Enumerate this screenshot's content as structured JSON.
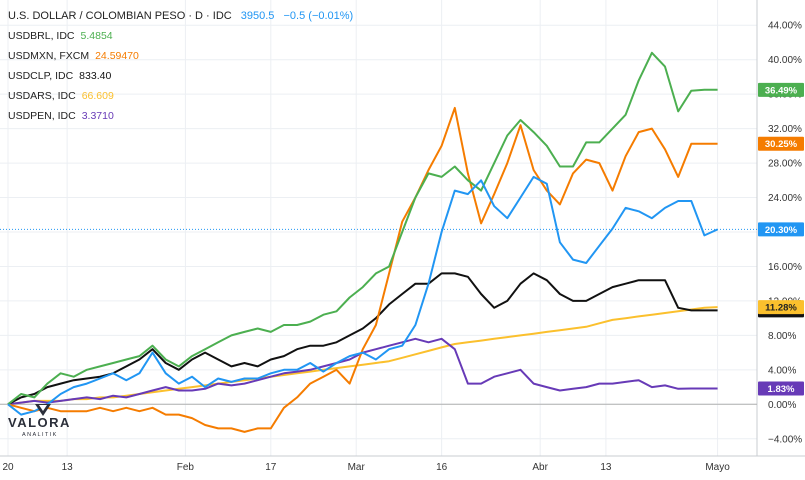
{
  "chart_data": {
    "type": "line",
    "title": "U.S. DOLLAR / COLOMBIAN PESO · D · IDC",
    "title_quote": {
      "last": "3950.5",
      "change": "−0.5",
      "change_pct": "(−0.01%)"
    },
    "ylim": [
      -6,
      46
    ],
    "y_ticks": [
      "−4.00%",
      "0.00%",
      "4.00%",
      "8.00%",
      "12.00%",
      "16.00%",
      "20.00%",
      "24.00%",
      "28.00%",
      "32.00%",
      "36.00%",
      "40.00%",
      "44.00%"
    ],
    "y_tick_values": [
      -4,
      0,
      4,
      8,
      12,
      16,
      20,
      24,
      28,
      32,
      36,
      40,
      44
    ],
    "x_ticks": [
      {
        "label": "20",
        "x": 0
      },
      {
        "label": "13",
        "x": 9
      },
      {
        "label": "Feb",
        "x": 27
      },
      {
        "label": "17",
        "x": 40
      },
      {
        "label": "Mar",
        "x": 53
      },
      {
        "label": "16",
        "x": 66
      },
      {
        "label": "Abr",
        "x": 81
      },
      {
        "label": "13",
        "x": 91
      },
      {
        "label": "Mayo",
        "x": 108
      }
    ],
    "xlim": [
      0,
      114
    ],
    "grid": true,
    "x": [
      0,
      2,
      4,
      6,
      8,
      10,
      12,
      14,
      16,
      18,
      20,
      22,
      24,
      26,
      28,
      30,
      32,
      34,
      36,
      38,
      40,
      42,
      44,
      46,
      48,
      50,
      52,
      54,
      56,
      58,
      60,
      62,
      64,
      66,
      68,
      70,
      72,
      74,
      76,
      78,
      80,
      82,
      84,
      86,
      88,
      90,
      92,
      94,
      96,
      98,
      100,
      102,
      104,
      106,
      108
    ],
    "series": [
      {
        "name": "U.S. DOLLAR / COLOMBIAN PESO",
        "color": "#2196f3",
        "last_label": "20.30%",
        "values": [
          0,
          -1.2,
          -0.8,
          0,
          1.2,
          2,
          2.4,
          3,
          3.6,
          2.8,
          3.6,
          6,
          3.6,
          2.4,
          3.2,
          2,
          3,
          2.6,
          3,
          3,
          3.6,
          4,
          4,
          4.8,
          3.8,
          4.8,
          5.6,
          6,
          5.2,
          6.4,
          6.8,
          9.2,
          14,
          20,
          24.8,
          24.4,
          26,
          23,
          21.6,
          24,
          26.4,
          25.6,
          18.8,
          16.8,
          16.4,
          18.4,
          20.4,
          22.8,
          22.4,
          21.6,
          22.8,
          23.6,
          23.6,
          19.6,
          20.3
        ]
      },
      {
        "name": "USDBRL, IDC",
        "short": "USDBRL",
        "quote": "5.4854",
        "color": "#4caf50",
        "last_label": "36.49%",
        "values": [
          0,
          1.2,
          0.8,
          2.4,
          3.6,
          3.2,
          4,
          4.4,
          4.8,
          5.2,
          5.6,
          6.8,
          5.2,
          4.4,
          5.6,
          6.4,
          7.2,
          8,
          8.4,
          8.8,
          8.4,
          9.2,
          9.2,
          9.6,
          10.4,
          10.8,
          12.4,
          13.6,
          15.2,
          16,
          20,
          24,
          26.8,
          26.4,
          27.6,
          26,
          24.8,
          28,
          31.2,
          33,
          31.6,
          30,
          27.6,
          27.6,
          30.4,
          30.4,
          32,
          33.6,
          37.6,
          40.8,
          39.2,
          34,
          36.4,
          36.5,
          36.5
        ]
      },
      {
        "name": "USDMXN, FXCM",
        "short": "USDMXN",
        "quote": "24.59470",
        "color": "#f57c00",
        "last_label": "30.25%",
        "values": [
          0,
          -0.4,
          -0.8,
          -0.4,
          -0.8,
          -0.8,
          -0.8,
          -0.4,
          -0.8,
          -0.4,
          -0.8,
          -0.4,
          -1.2,
          -1.2,
          -1.6,
          -2.4,
          -2.8,
          -2.8,
          -3.2,
          -2.8,
          -2.8,
          -0.4,
          0.8,
          2.4,
          3.2,
          4,
          2.4,
          6.4,
          9.2,
          15.2,
          21.2,
          24,
          27.2,
          30,
          34.4,
          26.8,
          21,
          24.4,
          28,
          32.4,
          27.2,
          24.8,
          23.2,
          26.8,
          28.4,
          28,
          24.8,
          28.8,
          31.6,
          32,
          29.6,
          26.4,
          30.25,
          30.25,
          30.25
        ]
      },
      {
        "name": "USDCLP, IDC",
        "short": "USDCLP",
        "quote": "833.40",
        "color": "#111111",
        "last_label": "10.90%",
        "values": [
          0,
          0.8,
          1.2,
          2,
          2.4,
          2.8,
          3,
          3.2,
          3.6,
          4.4,
          5.2,
          6.4,
          4.8,
          4,
          5.2,
          6,
          5.2,
          4.4,
          4.8,
          4.4,
          5.2,
          5.6,
          6.4,
          6.8,
          6.8,
          7.2,
          8,
          8.8,
          10,
          11.6,
          12.8,
          14,
          14,
          15.2,
          15.2,
          14.8,
          12.8,
          11.2,
          12,
          14,
          15.2,
          14.4,
          12.8,
          12,
          12,
          12.8,
          13.6,
          14,
          14.4,
          14.4,
          14.4,
          11.2,
          10.9,
          10.9,
          10.9
        ]
      },
      {
        "name": "USDARS, IDC",
        "short": "USDARS",
        "quote": "66.609",
        "color": "#fbc02d",
        "last_label": "11.28%",
        "values": [
          0,
          0.2,
          0.4,
          0.4,
          0.4,
          0.6,
          0.6,
          0.8,
          0.8,
          1,
          1.2,
          1.4,
          1.6,
          1.8,
          2,
          2.2,
          2.4,
          2.6,
          2.8,
          3,
          3.2,
          3.4,
          3.6,
          3.8,
          4,
          4.2,
          4.4,
          4.6,
          4.8,
          5,
          5.4,
          5.8,
          6.2,
          6.6,
          7,
          7.2,
          7.4,
          7.6,
          7.8,
          8,
          8.2,
          8.4,
          8.6,
          8.8,
          9,
          9.4,
          9.8,
          10,
          10.2,
          10.4,
          10.6,
          10.8,
          11,
          11.2,
          11.28
        ]
      },
      {
        "name": "USDPEN, IDC",
        "short": "USDPEN",
        "quote": "3.3710",
        "color": "#673ab7",
        "last_label": "1.83%",
        "values": [
          0,
          0.2,
          0.4,
          0.2,
          0.4,
          0.6,
          0.8,
          0.6,
          1,
          0.8,
          1.2,
          1.6,
          2,
          1.6,
          1.6,
          1.8,
          2.4,
          2.2,
          2.4,
          2.8,
          3.2,
          3.6,
          3.8,
          4,
          4.4,
          4.8,
          5.2,
          6,
          6.4,
          6.8,
          7.2,
          7.6,
          7.2,
          7.6,
          6.4,
          2.4,
          2.4,
          3.2,
          3.6,
          4,
          2.4,
          2,
          1.6,
          1.8,
          2,
          2.4,
          2.4,
          2.6,
          2.8,
          2,
          2.2,
          1.8,
          1.83,
          1.83,
          1.83
        ]
      }
    ],
    "highlight_line": {
      "value": 20.3,
      "color": "#2196f3"
    },
    "zero_line": 0
  },
  "legend": [
    {
      "label": "USDBRL, IDC",
      "value": "5.4854",
      "color": "#4caf50"
    },
    {
      "label": "USDMXN, FXCM",
      "value": "24.59470",
      "color": "#f57c00"
    },
    {
      "label": "USDCLP, IDC",
      "value": "833.40",
      "color": "#111111"
    },
    {
      "label": "USDARS, IDC",
      "value": "66.609",
      "color": "#fbc02d"
    },
    {
      "label": "USDPEN, IDC",
      "value": "3.3710",
      "color": "#673ab7"
    }
  ],
  "logo": {
    "name": "VALORA",
    "sub": "ANALITIK"
  },
  "colors": {
    "grid": "#eceff3",
    "axis_text": "#333333",
    "axis_line": "#c8ccd2",
    "zero": "#b0b0b0"
  }
}
